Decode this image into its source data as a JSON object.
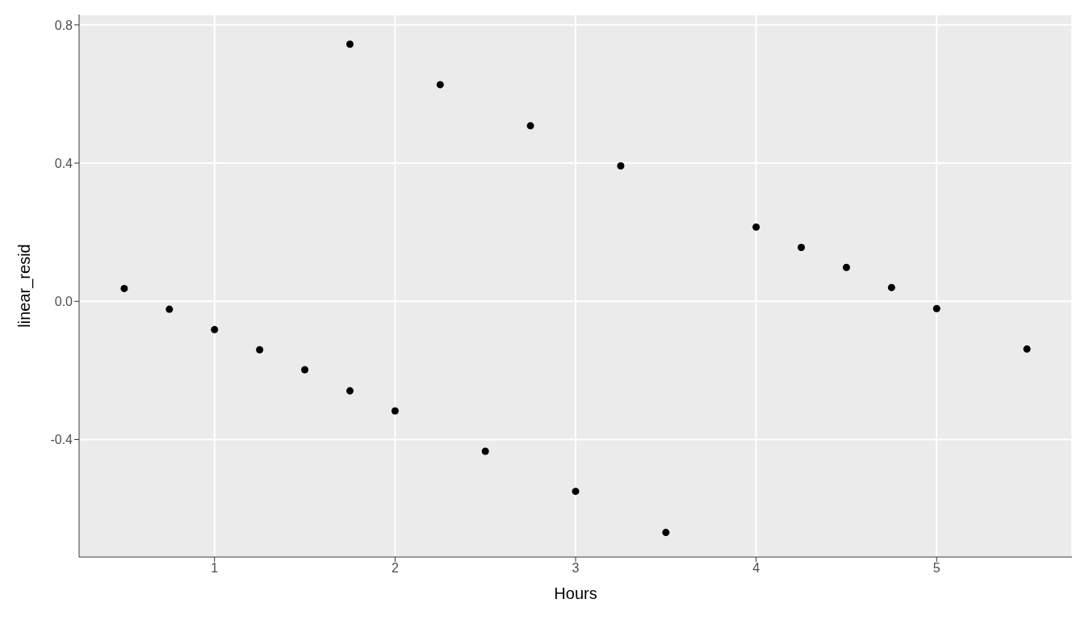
{
  "chart_data": {
    "type": "scatter",
    "xlabel": "Hours",
    "ylabel": "linear_resid",
    "x": [
      0.5,
      0.75,
      1,
      1.25,
      1.5,
      1.75,
      2,
      2.5,
      3,
      3.5,
      1.75,
      2.25,
      2.75,
      3.25,
      4,
      4.25,
      4.5,
      4.75,
      5,
      5.5
    ],
    "series": [
      {
        "color": "#000000",
        "values": [
          0.037,
          -0.023,
          -0.082,
          -0.14,
          -0.198,
          -0.259,
          -0.317,
          -0.434,
          -0.55,
          -0.669,
          0.744,
          0.627,
          0.508,
          0.392,
          0.215,
          0.156,
          0.098,
          0.04,
          -0.021,
          -0.138
        ]
      }
    ],
    "xlim": [
      0.25,
      5.75
    ],
    "xticks": [
      1,
      2,
      3,
      4,
      5
    ],
    "ylim": [
      -0.74,
      0.83
    ],
    "yticks": [
      -0.4,
      {
        "value": 0,
        "label": "0.0"
      },
      0.4,
      0.8
    ],
    "grid": true,
    "marker": "circle"
  }
}
